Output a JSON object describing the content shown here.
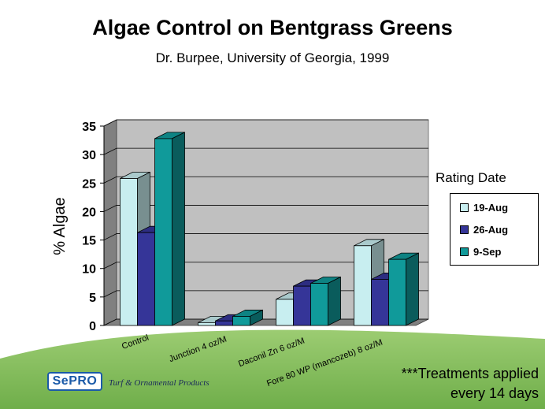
{
  "header": {
    "title": "Algae Control on Bentgrass Greens",
    "subtitle": "Dr. Burpee, University of Georgia, 1999"
  },
  "chart_data": {
    "type": "bar",
    "style": "3d-clustered-column",
    "title": "Algae Control on Bentgrass Greens",
    "subtitle": "Dr. Burpee, University of Georgia, 1999",
    "xlabel": "",
    "ylabel": "% Algae",
    "ylim": [
      0,
      35
    ],
    "yticks": [
      "0",
      "5",
      "10",
      "15",
      "20",
      "25",
      "30",
      "35"
    ],
    "grid": true,
    "categories": [
      "Control",
      "Junction 4 oz/M",
      "Daconil Zn 6 oz/M",
      "Fore 80 WP (mancozeb) 8 oz/M"
    ],
    "legend_title": "Rating Date",
    "legend_position": "right",
    "series": [
      {
        "name": "19-Aug",
        "color": "#c8eef0",
        "values": [
          25.8,
          0.5,
          4.6,
          14.0
        ]
      },
      {
        "name": "26-Aug",
        "color": "#353598",
        "values": [
          16.3,
          0.8,
          6.9,
          8.1
        ]
      },
      {
        "name": "9-Sep",
        "color": "#109a9a",
        "values": [
          32.8,
          1.6,
          7.4,
          11.6
        ]
      }
    ]
  },
  "footer": {
    "logo_text": "SePRO",
    "tagline": "Turf & Ornamental Products",
    "note_line1": "***Treatments applied",
    "note_line2": "every 14 days"
  }
}
